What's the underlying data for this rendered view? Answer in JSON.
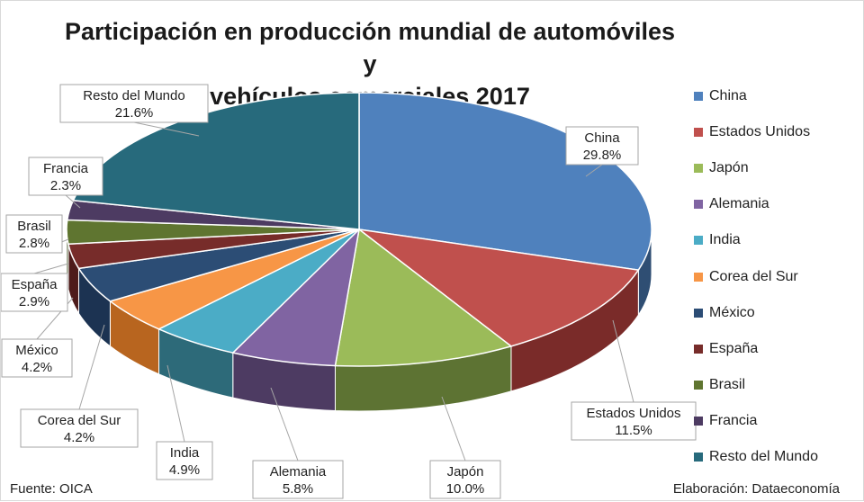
{
  "title_line1": "Participación en producción mundial de automóviles y",
  "title_line2": "vehículos comerciales 2017",
  "source": "Fuente: OICA",
  "credit": "Elaboración: Dataeconomía",
  "chart_data": {
    "type": "pie",
    "title": "Participación en producción mundial de automóviles y vehículos comerciales 2017",
    "legend_position": "right",
    "categories": [
      "China",
      "Estados Unidos",
      "Japón",
      "Alemania",
      "India",
      "Corea del Sur",
      "México",
      "España",
      "Brasil",
      "Francia",
      "Resto del Mundo"
    ],
    "values": [
      29.8,
      11.5,
      10.0,
      5.8,
      4.9,
      4.2,
      4.2,
      2.9,
      2.8,
      2.3,
      21.6
    ],
    "value_labels": [
      "29.8%",
      "11.5%",
      "10.0%",
      "5.8%",
      "4.9%",
      "4.2%",
      "4.2%",
      "2.9%",
      "2.8%",
      "2.3%",
      "21.6%"
    ],
    "colors": [
      "#4f81bd",
      "#c0504d",
      "#9bbb59",
      "#8064a2",
      "#4bacc6",
      "#f79646",
      "#2c4d75",
      "#772c2a",
      "#5f7530",
      "#4d3b62",
      "#276a7c"
    ],
    "side_colors": [
      "#2f4e73",
      "#7a2b29",
      "#5d7333",
      "#4d3b62",
      "#2d6a79",
      "#b8651f",
      "#1c3352",
      "#4e1b1a",
      "#3c4c1d",
      "#30253f",
      "#19444f"
    ]
  }
}
